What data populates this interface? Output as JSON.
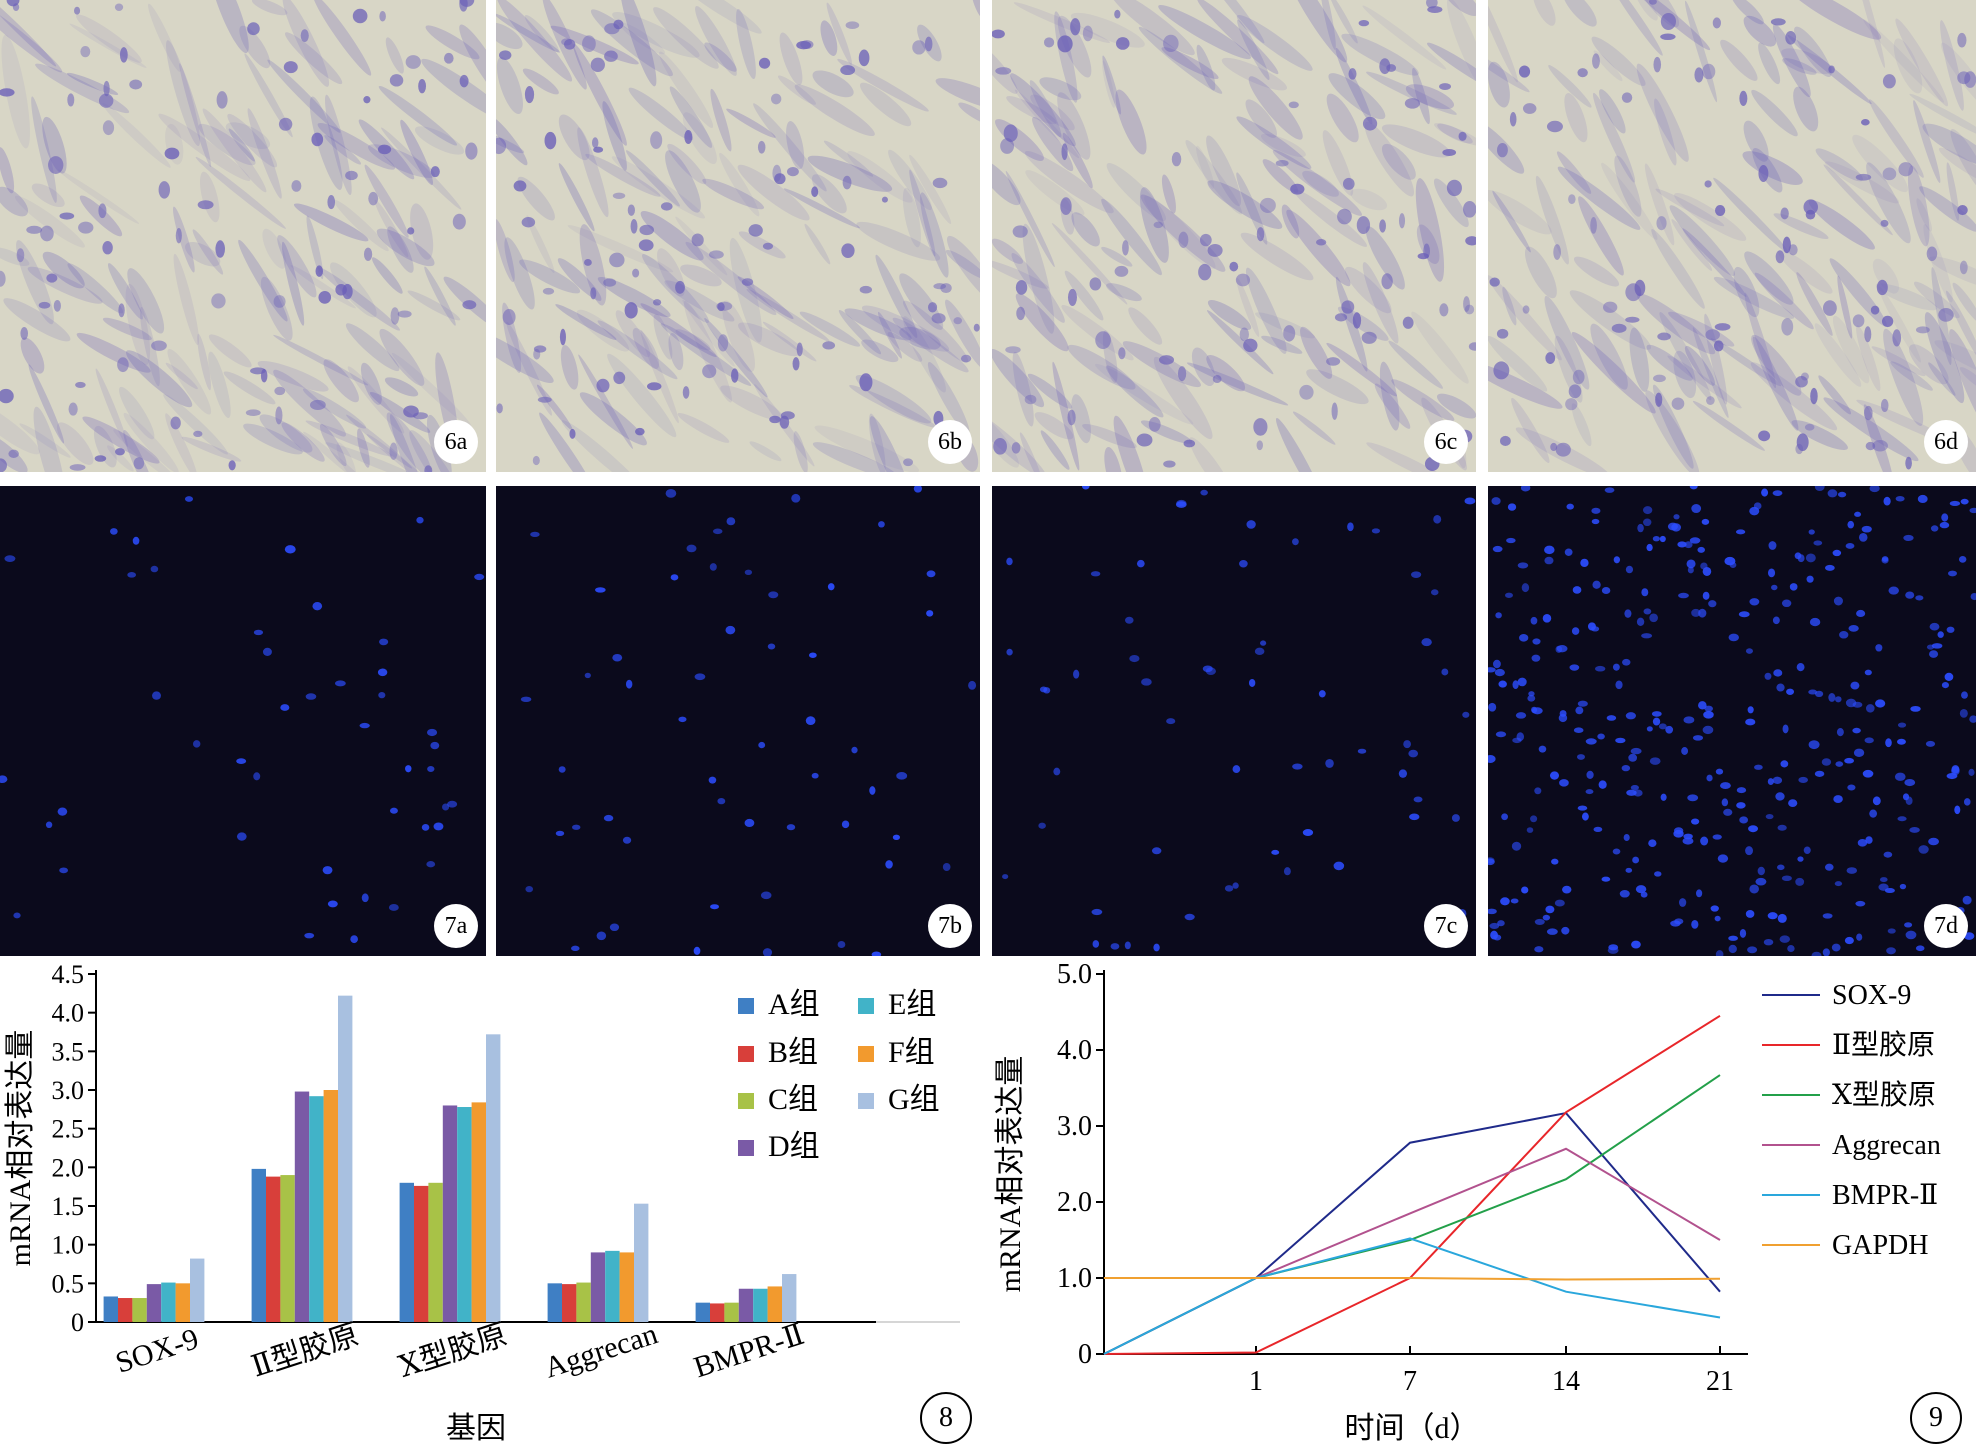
{
  "colors": {
    "stain_bg": "#d8d6c6",
    "stain_cell": "#6a5fb8",
    "fluor_bg": "#0b0a1c",
    "fluor_cell": "#2c4dff"
  },
  "stain_panels": [
    {
      "label": "6a"
    },
    {
      "label": "6b"
    },
    {
      "label": "6c"
    },
    {
      "label": "6d"
    }
  ],
  "fluor_panels": [
    {
      "label": "7a"
    },
    {
      "label": "7b"
    },
    {
      "label": "7c"
    },
    {
      "label": "7d"
    }
  ],
  "chart_data": [
    {
      "figure_number": "8",
      "type": "bar",
      "ylabel": "mRNA相对表达量",
      "xlabel": "基因",
      "ylim": [
        0,
        4.5
      ],
      "yticks": [
        "0",
        "0.5",
        "1.0",
        "1.5",
        "2.0",
        "2.5",
        "3.0",
        "3.5",
        "4.0",
        "4.5"
      ],
      "categories": [
        "SOX-9",
        "Ⅱ型胶原",
        "Ⅹ型胶原",
        "Aggrecan",
        "BMPR-Ⅱ"
      ],
      "legend_position": "top-right",
      "series": [
        {
          "name": "A组",
          "color": "#3f7fc4",
          "values": [
            0.33,
            1.98,
            1.8,
            0.5,
            0.25
          ]
        },
        {
          "name": "B组",
          "color": "#d83f3a",
          "values": [
            0.31,
            1.88,
            1.76,
            0.49,
            0.24
          ]
        },
        {
          "name": "C组",
          "color": "#a8c247",
          "values": [
            0.31,
            1.9,
            1.8,
            0.51,
            0.25
          ]
        },
        {
          "name": "D组",
          "color": "#7a5aa6",
          "values": [
            0.49,
            2.98,
            2.8,
            0.9,
            0.43
          ]
        },
        {
          "name": "E组",
          "color": "#41b3c8",
          "values": [
            0.51,
            2.92,
            2.78,
            0.92,
            0.43
          ]
        },
        {
          "name": "F组",
          "color": "#f29a2e",
          "values": [
            0.5,
            3.0,
            2.84,
            0.9,
            0.46
          ]
        },
        {
          "name": "G组",
          "color": "#a8c0e0",
          "values": [
            0.82,
            4.22,
            3.72,
            1.53,
            0.62
          ]
        }
      ]
    },
    {
      "figure_number": "9",
      "type": "line",
      "ylabel": "mRNA相对表达量",
      "xlabel": "时间（d）",
      "ylim": [
        0,
        5.0
      ],
      "yticks": [
        "0",
        "1.0",
        "2.0",
        "3.0",
        "4.0",
        "5.0"
      ],
      "xticks": [
        "1",
        "7",
        "14",
        "21"
      ],
      "x_positions": [
        "0",
        "1",
        "7",
        "14",
        "21"
      ],
      "legend_position": "right",
      "series": [
        {
          "name": "SOX-9",
          "color": "#1f2a8a",
          "values": [
            0,
            1.0,
            2.78,
            3.17,
            0.82
          ]
        },
        {
          "name": "Ⅱ型胶原",
          "color": "#e8262a",
          "values": [
            0,
            0.02,
            1.0,
            3.18,
            4.45
          ]
        },
        {
          "name": "Ⅹ型胶原",
          "color": "#23a04a",
          "values": [
            0,
            1.0,
            1.5,
            2.3,
            3.67
          ]
        },
        {
          "name": "Aggrecan",
          "color": "#b2528e",
          "values": [
            0,
            1.0,
            1.85,
            2.7,
            1.5
          ]
        },
        {
          "name": "BMPR-Ⅱ",
          "color": "#2aa7dc",
          "values": [
            0,
            1.0,
            1.52,
            0.82,
            0.48
          ]
        },
        {
          "name": "GAPDH",
          "color": "#f0a030",
          "values": [
            1.0,
            1.0,
            1.0,
            0.98,
            0.99
          ]
        }
      ]
    }
  ]
}
